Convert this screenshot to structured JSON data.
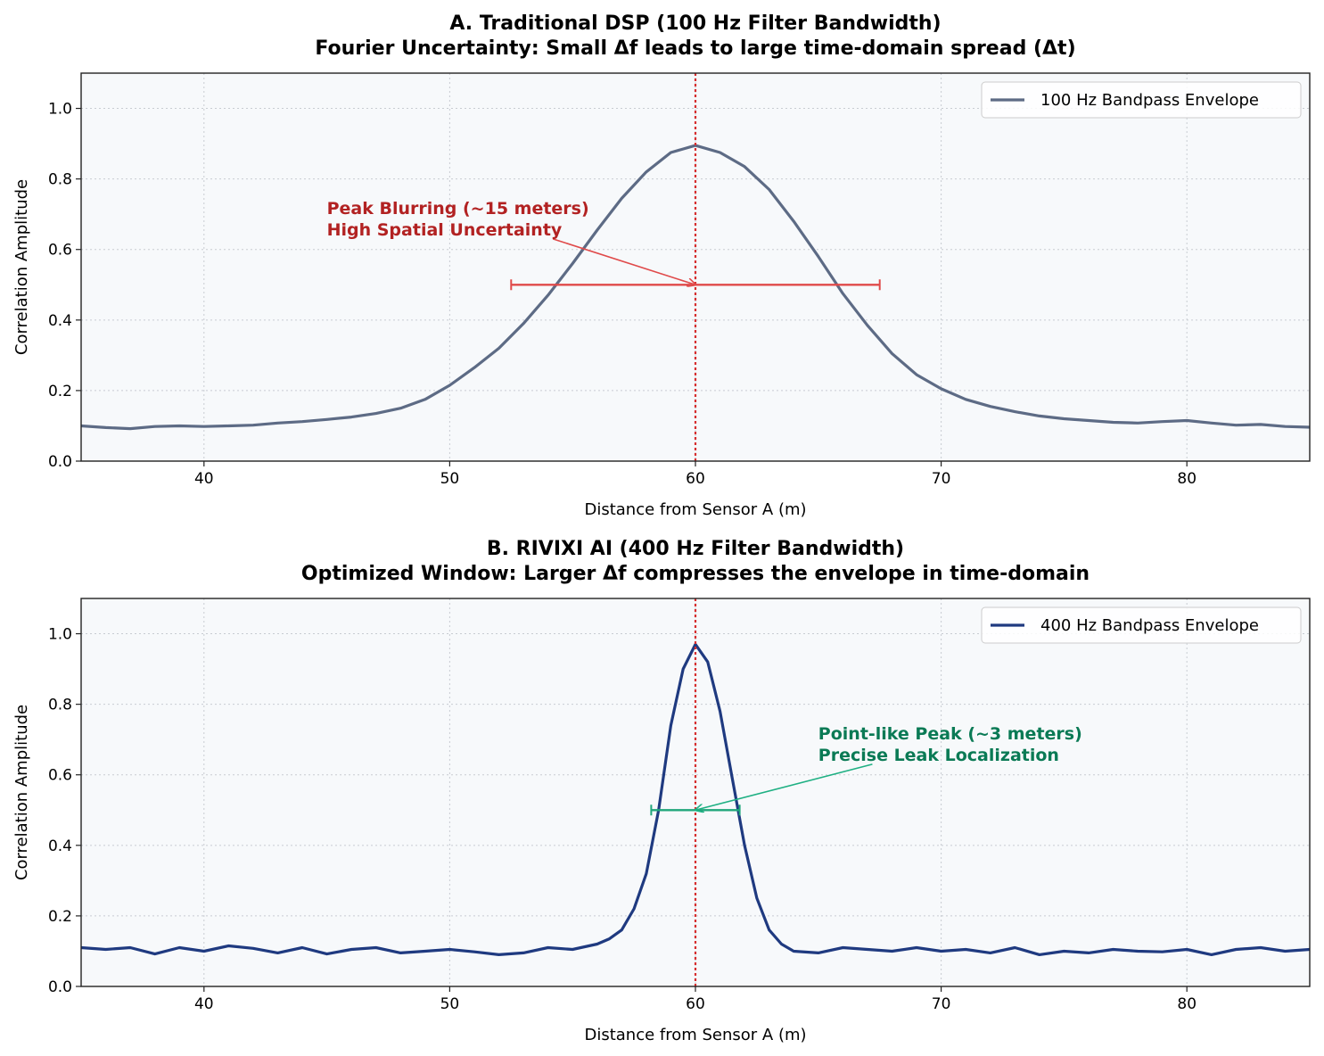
{
  "chart_data": [
    {
      "type": "line",
      "title": "A. Traditional DSP (100 Hz Filter Bandwidth)",
      "subtitle": "Fourier Uncertainty: Small Δf leads to large time-domain spread (Δt)",
      "xlabel": "Distance from Sensor A (m)",
      "ylabel": "Correlation Amplitude",
      "xlim": [
        35,
        85
      ],
      "ylim": [
        0,
        1.1
      ],
      "xticks": [
        40,
        50,
        60,
        70,
        80
      ],
      "yticks": [
        0.0,
        0.2,
        0.4,
        0.6,
        0.8,
        1.0
      ],
      "grid": true,
      "legend_position": "top-right",
      "series": [
        {
          "name": "100 Hz Bandpass Envelope",
          "color": "#5d6b85",
          "x": [
            35,
            36,
            37,
            38,
            39,
            40,
            41,
            42,
            43,
            44,
            45,
            46,
            47,
            48,
            49,
            50,
            51,
            52,
            53,
            54,
            55,
            56,
            57,
            58,
            59,
            60,
            61,
            62,
            63,
            64,
            65,
            66,
            67,
            68,
            69,
            70,
            71,
            72,
            73,
            74,
            75,
            76,
            77,
            78,
            79,
            80,
            81,
            82,
            83,
            84,
            85
          ],
          "y": [
            0.1,
            0.095,
            0.092,
            0.098,
            0.1,
            0.098,
            0.1,
            0.102,
            0.108,
            0.112,
            0.118,
            0.125,
            0.135,
            0.15,
            0.175,
            0.215,
            0.265,
            0.32,
            0.39,
            0.47,
            0.56,
            0.655,
            0.745,
            0.82,
            0.875,
            0.895,
            0.875,
            0.835,
            0.77,
            0.68,
            0.58,
            0.475,
            0.385,
            0.305,
            0.245,
            0.205,
            0.175,
            0.155,
            0.14,
            0.128,
            0.12,
            0.115,
            0.11,
            0.108,
            0.112,
            0.115,
            0.108,
            0.102,
            0.104,
            0.098,
            0.096
          ]
        }
      ],
      "reference_line": {
        "x": 60,
        "color": "#d62f2f"
      },
      "interval": {
        "x_start": 52.5,
        "x_end": 67.5,
        "y": 0.5,
        "color": "#e04a4a"
      },
      "annotation": {
        "lines": [
          "Peak Blurring (~15 meters)",
          "High Spatial Uncertainty"
        ],
        "text_x": 45,
        "text_y": 0.7,
        "arrow_from": [
          54.2,
          0.63
        ],
        "arrow_to": [
          60,
          0.5
        ],
        "color": "#b22222",
        "arrow_color": "#e04a4a"
      }
    },
    {
      "type": "line",
      "title": "B. RIVIXI AI (400 Hz Filter Bandwidth)",
      "subtitle": "Optimized Window: Larger Δf compresses the envelope in time-domain",
      "xlabel": "Distance from Sensor A (m)",
      "ylabel": "Correlation Amplitude",
      "xlim": [
        35,
        85
      ],
      "ylim": [
        0,
        1.1
      ],
      "xticks": [
        40,
        50,
        60,
        70,
        80
      ],
      "yticks": [
        0.0,
        0.2,
        0.4,
        0.6,
        0.8,
        1.0
      ],
      "grid": true,
      "legend_position": "top-right",
      "series": [
        {
          "name": "400 Hz Bandpass Envelope",
          "color": "#1f3a80",
          "x": [
            35,
            36,
            37,
            38,
            39,
            40,
            41,
            42,
            43,
            44,
            45,
            46,
            47,
            48,
            49,
            50,
            51,
            52,
            53,
            54,
            55,
            56,
            56.5,
            57,
            57.5,
            58,
            58.5,
            59,
            59.5,
            60,
            60.5,
            61,
            61.5,
            62,
            62.5,
            63,
            63.5,
            64,
            65,
            66,
            67,
            68,
            69,
            70,
            71,
            72,
            73,
            74,
            75,
            76,
            77,
            78,
            79,
            80,
            81,
            82,
            83,
            84,
            85
          ],
          "y": [
            0.11,
            0.105,
            0.11,
            0.092,
            0.11,
            0.1,
            0.115,
            0.108,
            0.095,
            0.11,
            0.092,
            0.105,
            0.11,
            0.095,
            0.1,
            0.105,
            0.098,
            0.09,
            0.095,
            0.11,
            0.105,
            0.12,
            0.135,
            0.16,
            0.22,
            0.32,
            0.5,
            0.74,
            0.9,
            0.97,
            0.92,
            0.78,
            0.59,
            0.4,
            0.25,
            0.16,
            0.12,
            0.1,
            0.095,
            0.11,
            0.105,
            0.1,
            0.11,
            0.1,
            0.105,
            0.095,
            0.11,
            0.09,
            0.1,
            0.095,
            0.105,
            0.1,
            0.098,
            0.105,
            0.09,
            0.105,
            0.11,
            0.1,
            0.105
          ]
        }
      ],
      "reference_line": {
        "x": 60,
        "color": "#d62f2f"
      },
      "interval": {
        "x_start": 58.2,
        "x_end": 61.8,
        "y": 0.5,
        "color": "#1fa67a"
      },
      "annotation": {
        "lines": [
          "Point-like Peak (~3 meters)",
          "Precise Leak Localization"
        ],
        "text_x": 65,
        "text_y": 0.7,
        "arrow_from": [
          67.2,
          0.63
        ],
        "arrow_to": [
          60,
          0.5
        ],
        "color": "#0a7a55",
        "arrow_color": "#1fb083"
      }
    }
  ]
}
